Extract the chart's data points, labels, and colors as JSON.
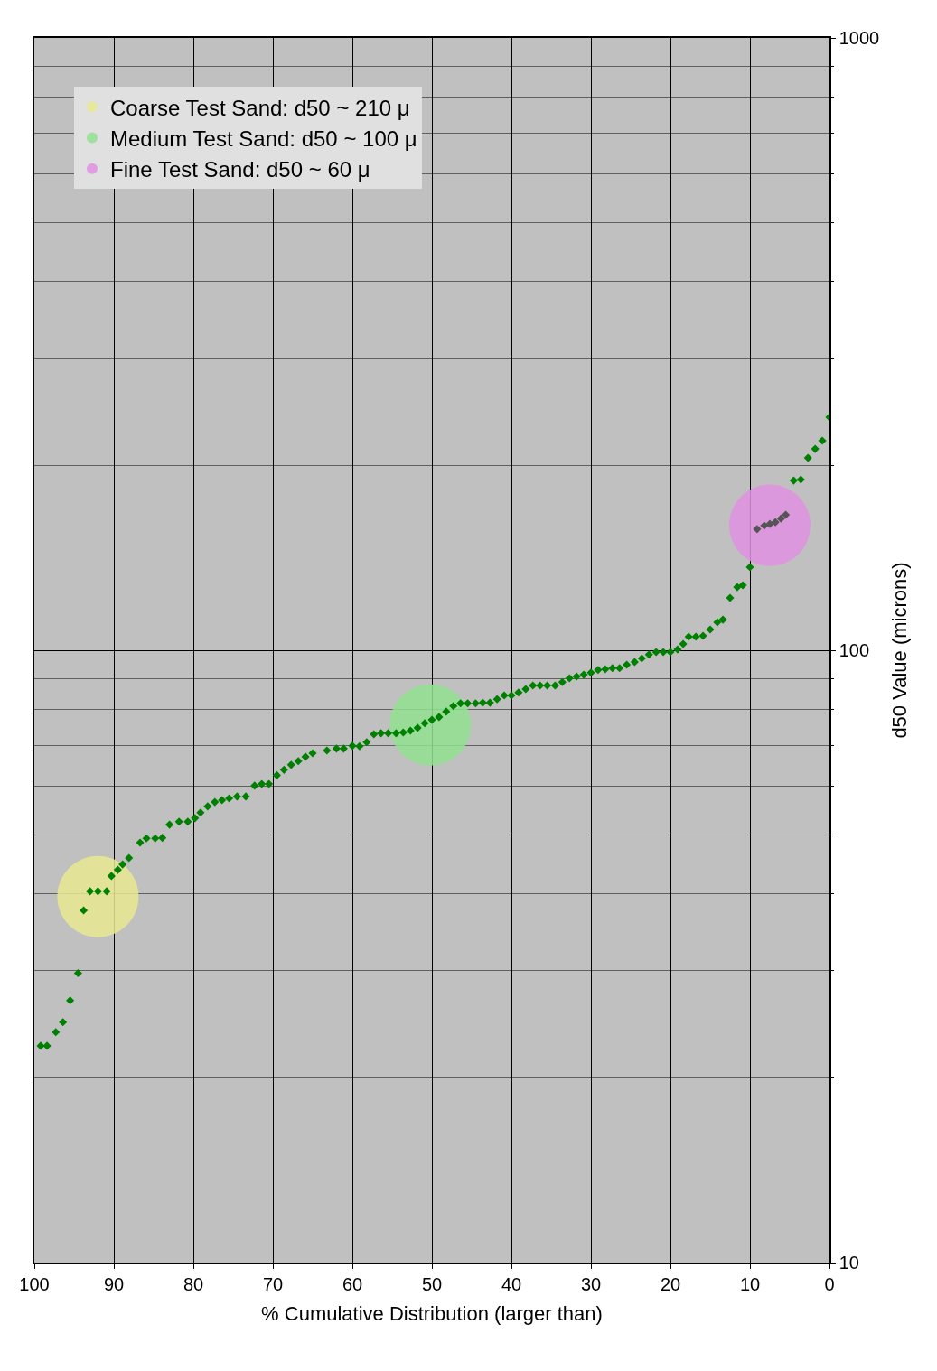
{
  "chart_data": {
    "type": "scatter",
    "xlabel": "% Cumulative Distribution (larger than)",
    "ylabel": "d50 Value (microns)",
    "log": "y",
    "xlim": [
      100,
      0
    ],
    "ylim": [
      10,
      1000
    ],
    "xticks": [
      100,
      90,
      80,
      70,
      60,
      50,
      40,
      30,
      20,
      10,
      0
    ],
    "yticks": [
      10,
      100,
      1000
    ],
    "grid": true,
    "legend": "top left",
    "series": [
      {
        "name": "Coarse Test Sand: d50 ~ 210 μ",
        "color": "#e8e890",
        "type": "bubble",
        "x": [
          92.0
        ],
        "values": [
          39.6
        ],
        "sizes": [
          1
        ]
      },
      {
        "name": "Medium Test Sand: d50 ~ 100 μ",
        "color": "#90e090",
        "type": "bubble",
        "x": [
          50.2
        ],
        "values": [
          75.5
        ],
        "sizes": [
          1
        ]
      },
      {
        "name": "Fine Test Sand: d50 ~ 60 μ",
        "color": "#e090e0",
        "type": "bubble",
        "x": [
          7.5
        ],
        "values": [
          160
        ],
        "sizes": [
          1
        ]
      },
      {
        "color": "#008000",
        "marker": "diamond",
        "x": [
          99.2,
          98.4,
          97.3,
          96.4,
          95.5,
          94.5,
          93.8,
          93.0,
          92.0,
          90.9,
          90.3,
          89.5,
          88.9,
          88.1,
          86.7,
          85.9,
          84.8,
          83.9,
          83.0,
          81.8,
          80.7,
          79.8,
          79.1,
          78.2,
          77.3,
          76.4,
          75.5,
          74.5,
          73.4,
          72.3,
          71.4,
          70.5,
          69.5,
          68.6,
          67.7,
          66.8,
          65.9,
          65.0,
          63.2,
          62.0,
          61.1,
          60.0,
          59.1,
          58.2,
          57.3,
          56.4,
          55.5,
          54.5,
          53.6,
          52.7,
          51.8,
          50.9,
          50.0,
          49.1,
          48.2,
          47.3,
          46.4,
          45.5,
          44.5,
          43.6,
          42.7,
          41.8,
          40.9,
          40.0,
          39.1,
          38.2,
          37.3,
          36.4,
          35.5,
          34.5,
          33.6,
          32.7,
          31.8,
          30.9,
          30.0,
          29.1,
          28.2,
          27.3,
          26.4,
          25.5,
          24.5,
          23.6,
          22.7,
          21.8,
          20.9,
          20.0,
          19.1,
          18.4,
          17.7,
          16.8,
          15.9,
          15.0,
          14.1,
          13.4,
          12.5,
          11.6,
          10.9,
          10.0,
          4.5,
          3.6,
          2.7,
          1.8,
          0.9,
          0.0
        ],
        "values": [
          22.6,
          22.6,
          23.8,
          24.7,
          26.8,
          29.7,
          37.6,
          40.4,
          40.4,
          40.4,
          42.8,
          43.8,
          44.7,
          45.8,
          48.5,
          49.3,
          49.3,
          49.4,
          51.9,
          52.5,
          52.5,
          53.2,
          54.3,
          55.6,
          56.5,
          56.9,
          57.3,
          57.7,
          57.7,
          60.1,
          60.5,
          60.5,
          62.5,
          63.8,
          65.0,
          65.9,
          67.0,
          67.9,
          68.6,
          69.1,
          69.1,
          69.8,
          69.7,
          70.8,
          72.9,
          73.2,
          73.2,
          73.2,
          73.4,
          73.9,
          74.7,
          76.0,
          77.0,
          77.8,
          79.4,
          81.1,
          81.9,
          81.9,
          81.9,
          82.1,
          82.1,
          83.2,
          84.4,
          84.4,
          85.3,
          86.4,
          87.6,
          87.6,
          87.6,
          87.6,
          88.7,
          90.0,
          90.6,
          91.2,
          91.9,
          92.9,
          93.1,
          93.5,
          93.5,
          94.7,
          95.7,
          97.0,
          98.4,
          99.3,
          99.3,
          99.3,
          100.3,
          102.4,
          105.2,
          105.2,
          105.6,
          108.1,
          111.1,
          112.2,
          121.8,
          126.8,
          127.7,
          136.7,
          189.3,
          190.0,
          206.1,
          213.2,
          219.9,
          240.2
        ]
      },
      {
        "color": "#555555",
        "marker": "diamond",
        "x": [
          9.1,
          8.2,
          7.5,
          6.8,
          6.1,
          5.5
        ],
        "values": [
          157.7,
          159.8,
          160.8,
          161.9,
          164.1,
          166.4
        ]
      }
    ]
  }
}
